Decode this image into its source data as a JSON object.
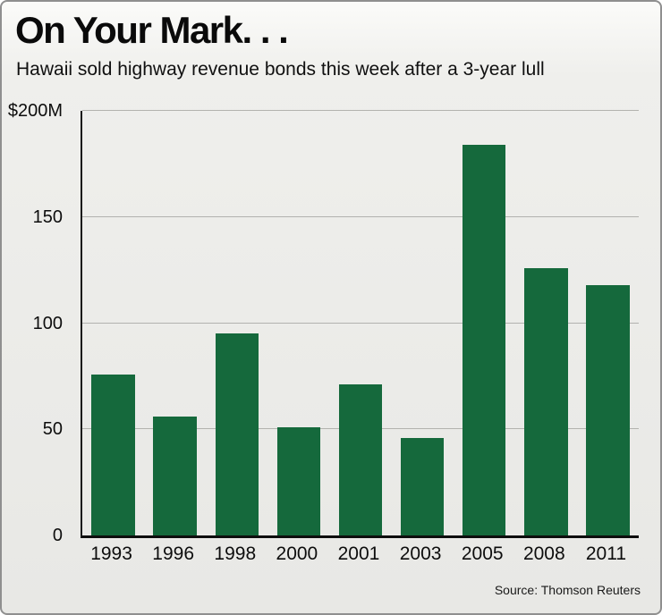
{
  "chart_data": {
    "type": "bar",
    "title": "On Your Mark. . .",
    "subtitle": "Hawaii sold highway revenue bonds this week after a 3-year lull",
    "categories": [
      "1993",
      "1996",
      "1998",
      "2000",
      "2001",
      "2003",
      "2005",
      "2008",
      "2011"
    ],
    "values": [
      76,
      56,
      95,
      51,
      71,
      46,
      184,
      126,
      118
    ],
    "xlabel": "",
    "ylabel": "",
    "ylim": [
      0,
      200
    ],
    "yticks": [
      0,
      50,
      100,
      150,
      200
    ],
    "ytick_labels": [
      "0",
      "50",
      "100",
      "150",
      "$200M"
    ],
    "grid": true,
    "legend": "none",
    "bar_color": "#15693c",
    "source": "Source: Thomson Reuters"
  }
}
